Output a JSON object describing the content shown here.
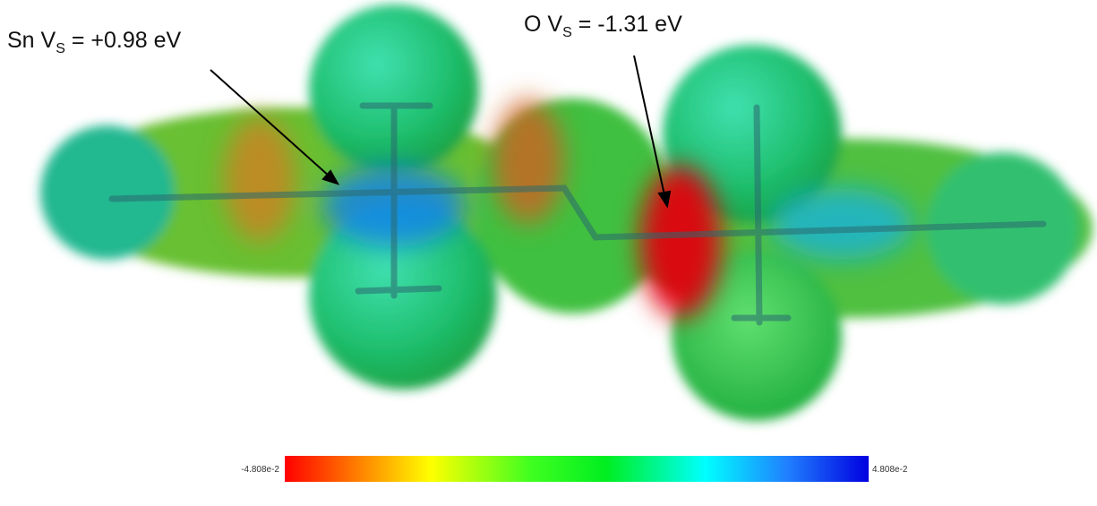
{
  "annotations": [
    {
      "label": "Sn V",
      "subscript": "S",
      "value": " = +0.98 eV"
    },
    {
      "label": "O V",
      "subscript": "S",
      "value": " = -1.31 eV"
    }
  ],
  "colorbar": {
    "min_label": "-4.808e-2",
    "max_label": "4.808e-2"
  }
}
